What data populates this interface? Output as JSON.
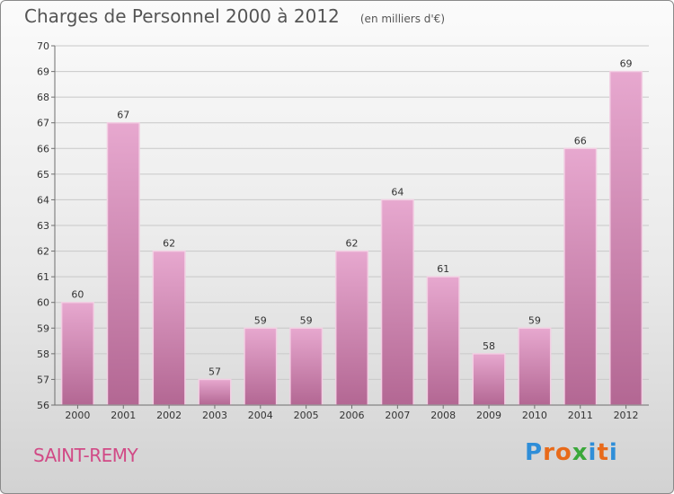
{
  "header": {
    "title": "Charges de Personnel 2000 à 2012",
    "subtitle": "(en milliers d'€)"
  },
  "footer": {
    "commune": "SAINT-REMY",
    "brand": "Proxiti",
    "brand_colors": [
      "#2f8ed8",
      "#e86a1a",
      "#e86a1a",
      "#3aa83a",
      "#2f8ed8",
      "#e86a1a",
      "#2f8ed8"
    ]
  },
  "colors": {
    "bar_top": "#e7a8cf",
    "bar_bottom": "#b36793",
    "bar_edge": "#f2cfe3",
    "axis": "#6e6e6e",
    "grid": "#c8c8c8"
  },
  "chart_data": {
    "type": "bar",
    "categories": [
      "2000",
      "2001",
      "2002",
      "2003",
      "2004",
      "2005",
      "2006",
      "2007",
      "2008",
      "2009",
      "2010",
      "2011",
      "2012"
    ],
    "values": [
      60,
      67,
      62,
      57,
      59,
      59,
      62,
      64,
      61,
      58,
      59,
      66,
      69
    ],
    "title": "Charges de Personnel 2000 à 2012",
    "subtitle": "(en milliers d'€)",
    "xlabel": "",
    "ylabel": "",
    "ylim": [
      56,
      70
    ],
    "yticks": [
      56,
      57,
      58,
      59,
      60,
      61,
      62,
      63,
      64,
      65,
      66,
      67,
      68,
      69,
      70
    ],
    "grid": true,
    "data_labels": true
  }
}
